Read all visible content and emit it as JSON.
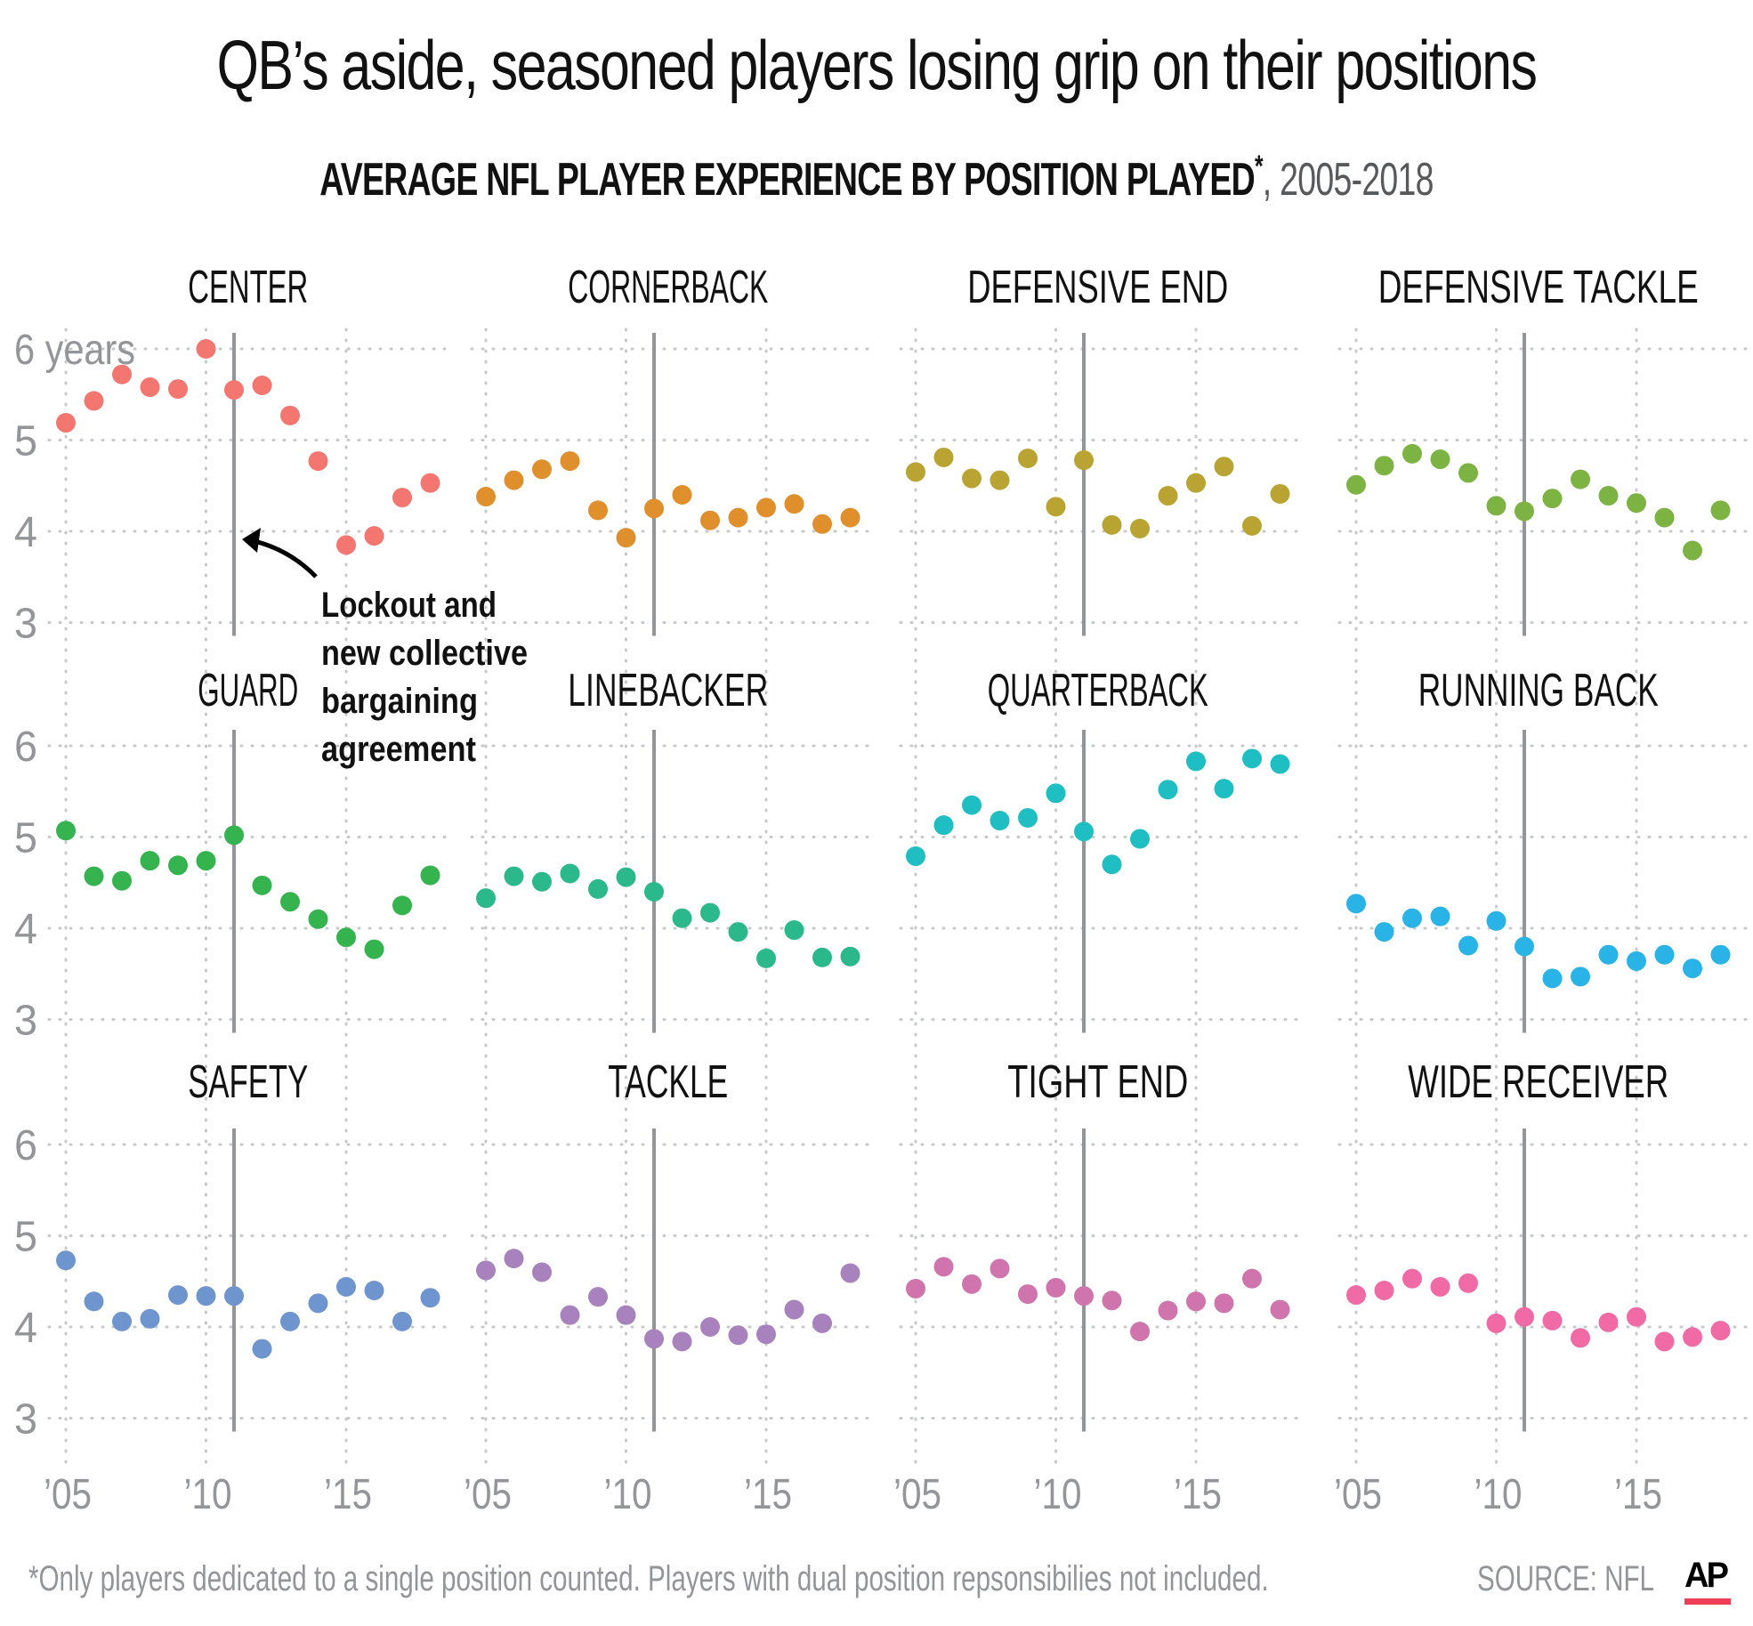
{
  "header": {
    "title": "QB’s aside, seasoned players losing grip on their positions",
    "subtitle_bold": "AVERAGE NFL PLAYER EXPERIENCE BY POSITION PLAYED",
    "subtitle_asterisk": "*",
    "subtitle_range": ", 2005-2018"
  },
  "footer": {
    "footnote": "*Only players dedicated to a single position counted. Players with dual position repsonsibilies not included.",
    "source": "SOURCE: NFL",
    "logo_text": "AP",
    "logo_accent": "#ef3e56"
  },
  "annotation": {
    "lines": [
      "Lockout and",
      "new collective",
      "bargaining",
      "agreement"
    ],
    "marker_year": 2011
  },
  "colors": {
    "grid": "#c7c8ca",
    "marker_line": "#939598",
    "axis_text": "#939598"
  },
  "chart_data": {
    "type": "scatter",
    "title": "AVERAGE NFL PLAYER EXPERIENCE BY POSITION PLAYED*, 2005-2018",
    "xlabel": "",
    "ylabel": "years",
    "x": [
      2005,
      2006,
      2007,
      2008,
      2009,
      2010,
      2011,
      2012,
      2013,
      2014,
      2015,
      2016,
      2017,
      2018
    ],
    "xticks": [
      2005,
      2010,
      2015
    ],
    "xtick_labels": [
      "’05",
      "’10",
      "’15"
    ],
    "yticks": [
      3,
      4,
      5,
      6
    ],
    "ytick_labels": [
      "3",
      "4",
      "5",
      "6"
    ],
    "first_ytick_label_top": "6 years",
    "ylim": [
      3,
      6
    ],
    "grid": true,
    "reference_line_x": 2011,
    "layout": "4x3 small multiples",
    "panels": [
      {
        "name": "CENTER",
        "color": "#f37770",
        "values": [
          5.19,
          5.43,
          5.72,
          5.58,
          5.56,
          6.0,
          5.55,
          5.6,
          5.27,
          4.77,
          3.85,
          3.95,
          4.37,
          4.53
        ]
      },
      {
        "name": "CORNERBACK",
        "color": "#e08f2d",
        "values": [
          4.38,
          4.56,
          4.68,
          4.77,
          4.23,
          3.93,
          4.25,
          4.4,
          4.12,
          4.15,
          4.26,
          4.3,
          4.08,
          4.15
        ]
      },
      {
        "name": "DEFENSIVE END",
        "color": "#b9a433",
        "values": [
          4.65,
          4.81,
          4.58,
          4.56,
          4.8,
          4.27,
          4.78,
          4.07,
          4.03,
          4.39,
          4.53,
          4.71,
          4.06,
          4.41
        ]
      },
      {
        "name": "DEFENSIVE TACKLE",
        "color": "#7cb342",
        "values": [
          4.51,
          4.72,
          4.85,
          4.79,
          4.64,
          4.28,
          4.22,
          4.36,
          4.57,
          4.39,
          4.31,
          4.15,
          3.79,
          4.23
        ]
      },
      {
        "name": "GUARD",
        "color": "#34b34e",
        "values": [
          5.07,
          4.57,
          4.52,
          4.74,
          4.69,
          4.74,
          5.02,
          4.47,
          4.29,
          4.1,
          3.9,
          3.77,
          4.25,
          4.58
        ]
      },
      {
        "name": "LINEBACKER",
        "color": "#2bb98b",
        "values": [
          4.33,
          4.57,
          4.51,
          4.6,
          4.43,
          4.56,
          4.4,
          4.11,
          4.17,
          3.96,
          3.67,
          3.98,
          3.68,
          3.69
        ]
      },
      {
        "name": "QUARTERBACK",
        "color": "#1fbec3",
        "values": [
          4.79,
          5.13,
          5.35,
          5.18,
          5.21,
          5.48,
          5.06,
          4.7,
          4.98,
          5.52,
          5.83,
          5.53,
          5.86,
          5.8
        ]
      },
      {
        "name": "RUNNING BACK",
        "color": "#29b3e6",
        "values": [
          4.27,
          3.96,
          4.11,
          4.13,
          3.81,
          4.08,
          3.8,
          3.45,
          3.47,
          3.71,
          3.64,
          3.71,
          3.56,
          3.71
        ]
      },
      {
        "name": "SAFETY",
        "color": "#6f95cf",
        "values": [
          4.73,
          4.28,
          4.06,
          4.09,
          4.35,
          4.34,
          4.34,
          3.76,
          4.06,
          4.26,
          4.44,
          4.4,
          4.06,
          4.32
        ]
      },
      {
        "name": "TACKLE",
        "color": "#a882bc",
        "values": [
          4.62,
          4.75,
          4.6,
          4.13,
          4.33,
          4.13,
          3.87,
          3.84,
          4.0,
          3.91,
          3.92,
          4.19,
          4.04,
          4.59
        ]
      },
      {
        "name": "TIGHT END",
        "color": "#d074ae",
        "values": [
          4.42,
          4.66,
          4.47,
          4.64,
          4.36,
          4.43,
          4.34,
          4.29,
          3.95,
          4.18,
          4.28,
          4.26,
          4.53,
          4.19
        ]
      },
      {
        "name": "WIDE RECEIVER",
        "color": "#f06aa6",
        "values": [
          4.35,
          4.4,
          4.53,
          4.44,
          4.48,
          4.04,
          4.11,
          4.07,
          3.88,
          4.05,
          4.11,
          3.84,
          3.89,
          3.96
        ]
      }
    ]
  }
}
